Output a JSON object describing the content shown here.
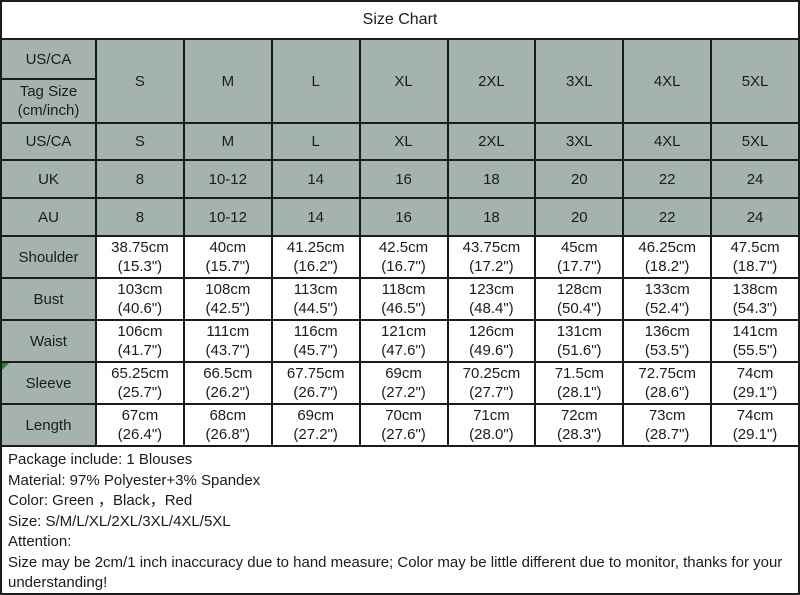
{
  "title": "Size Chart",
  "colors": {
    "header_bg": "#a5b3b0",
    "border": "#1c1c1c",
    "cell_bg": "#ffffff",
    "text": "#1b1b1b",
    "comment_marker_green": "#1e8a1e"
  },
  "header_band": {
    "us_ca_label": "US/CA",
    "tag_size_line1": "Tag Size",
    "tag_size_line2": "(cm/inch)",
    "sizes": [
      "S",
      "M",
      "L",
      "XL",
      "2XL",
      "3XL",
      "4XL",
      "5XL"
    ]
  },
  "size_rows": [
    {
      "label": "US/CA",
      "values": [
        "S",
        "M",
        "L",
        "XL",
        "2XL",
        "3XL",
        "4XL",
        "5XL"
      ]
    },
    {
      "label": "UK",
      "values": [
        "8",
        "10-12",
        "14",
        "16",
        "18",
        "20",
        "22",
        "24"
      ]
    },
    {
      "label": "AU",
      "values": [
        "8",
        "10-12",
        "14",
        "16",
        "18",
        "20",
        "22",
        "24"
      ]
    }
  ],
  "measure_rows": [
    {
      "label": "Shoulder",
      "cm": [
        "38.75cm",
        "40cm",
        "41.25cm",
        "42.5cm",
        "43.75cm",
        "45cm",
        "46.25cm",
        "47.5cm"
      ],
      "inch": [
        "(15.3\")",
        "(15.7\")",
        "(16.2\")",
        "(16.7\")",
        "(17.2\")",
        "(17.7\")",
        "(18.2\")",
        "(18.7\")"
      ]
    },
    {
      "label": "Bust",
      "cm": [
        "103cm",
        "108cm",
        "113cm",
        "118cm",
        "123cm",
        "128cm",
        "133cm",
        "138cm"
      ],
      "inch": [
        "(40.6\")",
        "(42.5\")",
        "(44.5\")",
        "(46.5\")",
        "(48.4\")",
        "(50.4\")",
        "(52.4\")",
        "(54.3\")"
      ]
    },
    {
      "label": "Waist",
      "cm": [
        "106cm",
        "111cm",
        "116cm",
        "121cm",
        "126cm",
        "131cm",
        "136cm",
        "141cm"
      ],
      "inch": [
        "(41.7\")",
        "(43.7\")",
        "(45.7\")",
        "(47.6\")",
        "(49.6\")",
        "(51.6\")",
        "(53.5\")",
        "(55.5\")"
      ]
    },
    {
      "label": "Sleeve",
      "cm": [
        "65.25cm",
        "66.5cm",
        "67.75cm",
        "69cm",
        "70.25cm",
        "71.5cm",
        "72.75cm",
        "74cm"
      ],
      "inch": [
        "(25.7\")",
        "(26.2\")",
        "(26.7\")",
        "(27.2\")",
        "(27.7\")",
        "(28.1\")",
        "(28.6\")",
        "(29.1\")"
      ]
    },
    {
      "label": "Length",
      "cm": [
        "67cm",
        "68cm",
        "69cm",
        "70cm",
        "71cm",
        "72cm",
        "73cm",
        "74cm"
      ],
      "inch": [
        "(26.4\")",
        "(26.8\")",
        "(27.2\")",
        "(27.6\")",
        "(28.0\")",
        "(28.3\")",
        "(28.7\")",
        "(29.1\")"
      ]
    }
  ],
  "footer": {
    "lines": [
      "Package include: 1 Blouses",
      "Material: 97% Polyester+3% Spandex",
      "Color: Green ，Black，Red",
      "Size: S/M/L/XL/2XL/3XL/4XL/5XL",
      "Attention:",
      "Size may be 2cm/1 inch inaccuracy due to hand measure; Color may be little different due to monitor, thanks for your understanding!"
    ]
  }
}
